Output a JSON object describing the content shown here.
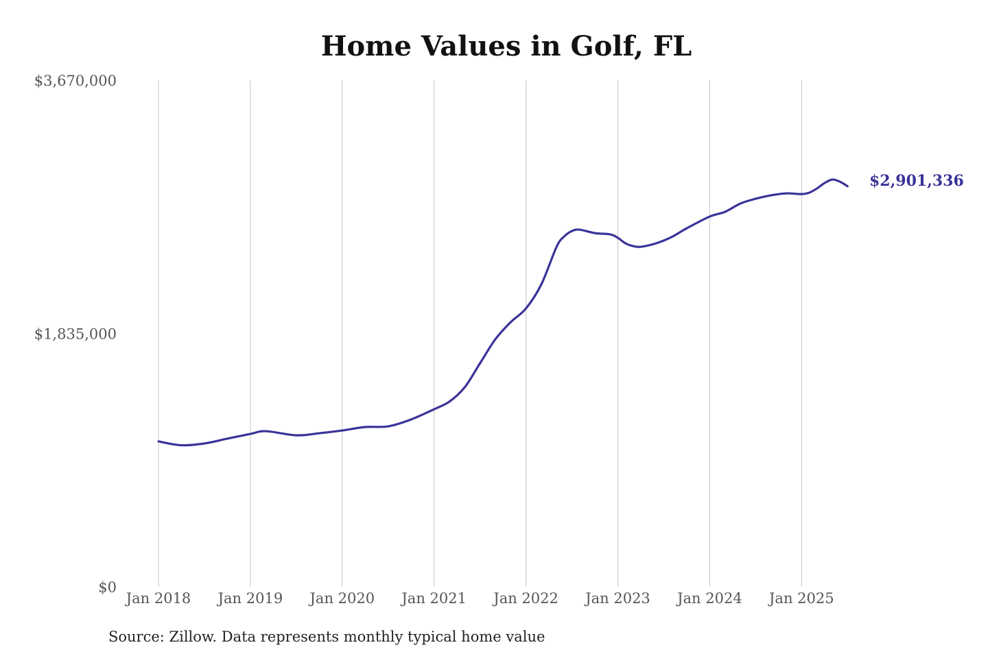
{
  "chart_data": {
    "type": "line",
    "title": "Home Values in Golf, FL",
    "source": "Source: Zillow. Data represents monthly typical home value",
    "xlabel": "",
    "ylabel": "",
    "ylim": [
      0,
      3670000
    ],
    "y_ticks": [
      0,
      1835000,
      3670000
    ],
    "y_tick_labels": [
      "$0",
      "$1,835,000",
      "$3,670,000"
    ],
    "x_ticks": [
      "2018-01",
      "2019-01",
      "2020-01",
      "2021-01",
      "2022-01",
      "2023-01",
      "2024-01",
      "2025-01"
    ],
    "x_tick_labels": [
      "Jan 2018",
      "Jan 2019",
      "Jan 2020",
      "Jan 2021",
      "Jan 2022",
      "Jan 2023",
      "Jan 2024",
      "Jan 2025"
    ],
    "grid": "vertical",
    "line_color": "#3a3399",
    "end_label": "$2,901,336",
    "series": [
      {
        "points": [
          [
            "2018-01",
            1053000
          ],
          [
            "2018-04",
            1025000
          ],
          [
            "2018-07",
            1038000
          ],
          [
            "2018-10",
            1073000
          ],
          [
            "2019-01",
            1107000
          ],
          [
            "2019-03",
            1127000
          ],
          [
            "2019-07",
            1097000
          ],
          [
            "2019-10",
            1112000
          ],
          [
            "2020-01",
            1132000
          ],
          [
            "2020-04",
            1157000
          ],
          [
            "2020-07",
            1162000
          ],
          [
            "2020-10",
            1212000
          ],
          [
            "2021-01",
            1286000
          ],
          [
            "2021-03",
            1341000
          ],
          [
            "2021-05",
            1445000
          ],
          [
            "2021-07",
            1619000
          ],
          [
            "2021-09",
            1793000
          ],
          [
            "2021-11",
            1917000
          ],
          [
            "2022-01",
            2016000
          ],
          [
            "2022-03",
            2190000
          ],
          [
            "2022-05",
            2463000
          ],
          [
            "2022-06",
            2538000
          ],
          [
            "2022-07",
            2577000
          ],
          [
            "2022-08",
            2587000
          ],
          [
            "2022-10",
            2562000
          ],
          [
            "2022-12",
            2553000
          ],
          [
            "2023-01",
            2528000
          ],
          [
            "2023-02",
            2488000
          ],
          [
            "2023-03",
            2468000
          ],
          [
            "2023-04",
            2463000
          ],
          [
            "2023-06",
            2488000
          ],
          [
            "2023-08",
            2533000
          ],
          [
            "2023-10",
            2597000
          ],
          [
            "2024-01",
            2682000
          ],
          [
            "2024-03",
            2716000
          ],
          [
            "2024-05",
            2776000
          ],
          [
            "2024-07",
            2811000
          ],
          [
            "2024-09",
            2836000
          ],
          [
            "2024-11",
            2850000
          ],
          [
            "2025-01",
            2845000
          ],
          [
            "2025-02",
            2855000
          ],
          [
            "2025-03",
            2885000
          ],
          [
            "2025-04",
            2925000
          ],
          [
            "2025-05",
            2950000
          ],
          [
            "2025-06",
            2935000
          ],
          [
            "2025-07",
            2901336
          ]
        ]
      }
    ]
  }
}
